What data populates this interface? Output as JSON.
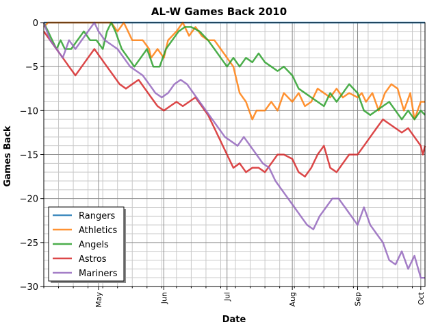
{
  "chart_data": {
    "type": "line",
    "title": "AL-W Games Back 2010",
    "xlabel": "Date",
    "ylabel": "Games Back",
    "x_ticks": [
      "May",
      "Jun",
      "Jul",
      "Aug",
      "Sep",
      "Oct"
    ],
    "x_tick_dates": [
      "2010-05-01",
      "2010-06-01",
      "2010-07-01",
      "2010-08-01",
      "2010-09-01",
      "2010-10-01"
    ],
    "xlim": [
      "2010-04-05",
      "2010-10-03"
    ],
    "ylim": [
      -30,
      0
    ],
    "y_ticks": [
      0,
      -5,
      -10,
      -15,
      -20,
      -25,
      -30
    ],
    "grid": true,
    "legend_position": "lower-left",
    "series": [
      {
        "name": "Rangers",
        "color": "#1f77b4",
        "points": [
          [
            "2010-04-05",
            0
          ],
          [
            "2010-06-01",
            0
          ],
          [
            "2010-10-03",
            0
          ]
        ]
      },
      {
        "name": "Athletics",
        "color": "#ff7f0e",
        "points": [
          [
            "2010-04-05",
            -0.5
          ],
          [
            "2010-04-07",
            0
          ],
          [
            "2010-04-28",
            0
          ],
          [
            "2010-05-03",
            0
          ],
          [
            "2010-05-07",
            0
          ],
          [
            "2010-05-10",
            -1
          ],
          [
            "2010-05-13",
            0
          ],
          [
            "2010-05-15",
            -1
          ],
          [
            "2010-05-17",
            -2
          ],
          [
            "2010-05-22",
            -2
          ],
          [
            "2010-05-25",
            -3
          ],
          [
            "2010-05-26",
            -4
          ],
          [
            "2010-05-29",
            -3
          ],
          [
            "2010-06-01",
            -4
          ],
          [
            "2010-06-03",
            -2
          ],
          [
            "2010-06-07",
            -1
          ],
          [
            "2010-06-10",
            0
          ],
          [
            "2010-06-13",
            -1.5
          ],
          [
            "2010-06-16",
            -0.5
          ],
          [
            "2010-06-19",
            -1.5
          ],
          [
            "2010-06-22",
            -2
          ],
          [
            "2010-06-25",
            -2
          ],
          [
            "2010-06-28",
            -3
          ],
          [
            "2010-07-01",
            -4
          ],
          [
            "2010-07-04",
            -5
          ],
          [
            "2010-07-07",
            -8
          ],
          [
            "2010-07-10",
            -9
          ],
          [
            "2010-07-13",
            -11
          ],
          [
            "2010-07-15",
            -10
          ],
          [
            "2010-07-19",
            -10
          ],
          [
            "2010-07-22",
            -9
          ],
          [
            "2010-07-25",
            -10
          ],
          [
            "2010-07-28",
            -8
          ],
          [
            "2010-08-01",
            -9
          ],
          [
            "2010-08-04",
            -8
          ],
          [
            "2010-08-07",
            -9.5
          ],
          [
            "2010-08-10",
            -9
          ],
          [
            "2010-08-13",
            -7.5
          ],
          [
            "2010-08-16",
            -8
          ],
          [
            "2010-08-19",
            -8.5
          ],
          [
            "2010-08-22",
            -7.5
          ],
          [
            "2010-08-25",
            -8.5
          ],
          [
            "2010-08-28",
            -8
          ],
          [
            "2010-09-01",
            -8.5
          ],
          [
            "2010-09-03",
            -8
          ],
          [
            "2010-09-05",
            -9
          ],
          [
            "2010-09-08",
            -8
          ],
          [
            "2010-09-11",
            -10
          ],
          [
            "2010-09-14",
            -8
          ],
          [
            "2010-09-17",
            -7
          ],
          [
            "2010-09-20",
            -7.5
          ],
          [
            "2010-09-23",
            -10
          ],
          [
            "2010-09-26",
            -8
          ],
          [
            "2010-09-28",
            -11
          ],
          [
            "2010-10-01",
            -9
          ],
          [
            "2010-10-03",
            -9
          ]
        ]
      },
      {
        "name": "Angels",
        "color": "#2ca02c",
        "points": [
          [
            "2010-04-05",
            0
          ],
          [
            "2010-04-07",
            -1
          ],
          [
            "2010-04-09",
            -2
          ],
          [
            "2010-04-11",
            -3
          ],
          [
            "2010-04-13",
            -2
          ],
          [
            "2010-04-15",
            -3
          ],
          [
            "2010-04-18",
            -3
          ],
          [
            "2010-04-21",
            -2
          ],
          [
            "2010-04-24",
            -1
          ],
          [
            "2010-04-27",
            -2
          ],
          [
            "2010-04-30",
            -2
          ],
          [
            "2010-05-03",
            -3
          ],
          [
            "2010-05-05",
            -1
          ],
          [
            "2010-05-07",
            0
          ],
          [
            "2010-05-09",
            -1
          ],
          [
            "2010-05-12",
            -3
          ],
          [
            "2010-05-15",
            -4
          ],
          [
            "2010-05-18",
            -5
          ],
          [
            "2010-05-21",
            -4
          ],
          [
            "2010-05-24",
            -3
          ],
          [
            "2010-05-27",
            -5
          ],
          [
            "2010-05-30",
            -5
          ],
          [
            "2010-06-02",
            -3
          ],
          [
            "2010-06-05",
            -2
          ],
          [
            "2010-06-08",
            -1
          ],
          [
            "2010-06-11",
            -0.5
          ],
          [
            "2010-06-14",
            -0.5
          ],
          [
            "2010-06-18",
            -1
          ],
          [
            "2010-06-22",
            -2
          ],
          [
            "2010-06-25",
            -3
          ],
          [
            "2010-06-28",
            -4
          ],
          [
            "2010-07-01",
            -5
          ],
          [
            "2010-07-04",
            -4
          ],
          [
            "2010-07-07",
            -5
          ],
          [
            "2010-07-10",
            -4
          ],
          [
            "2010-07-13",
            -4.5
          ],
          [
            "2010-07-16",
            -3.5
          ],
          [
            "2010-07-19",
            -4.5
          ],
          [
            "2010-07-22",
            -5
          ],
          [
            "2010-07-25",
            -5.5
          ],
          [
            "2010-07-28",
            -5
          ],
          [
            "2010-08-01",
            -6
          ],
          [
            "2010-08-04",
            -7.5
          ],
          [
            "2010-08-07",
            -8
          ],
          [
            "2010-08-10",
            -8.5
          ],
          [
            "2010-08-13",
            -9
          ],
          [
            "2010-08-16",
            -9.5
          ],
          [
            "2010-08-19",
            -8
          ],
          [
            "2010-08-22",
            -9
          ],
          [
            "2010-08-25",
            -8
          ],
          [
            "2010-08-28",
            -7
          ],
          [
            "2010-09-01",
            -8
          ],
          [
            "2010-09-04",
            -10
          ],
          [
            "2010-09-07",
            -10.5
          ],
          [
            "2010-09-10",
            -10
          ],
          [
            "2010-09-13",
            -9.5
          ],
          [
            "2010-09-16",
            -9
          ],
          [
            "2010-09-19",
            -10
          ],
          [
            "2010-09-22",
            -11
          ],
          [
            "2010-09-25",
            -10
          ],
          [
            "2010-09-28",
            -11
          ],
          [
            "2010-10-01",
            -10
          ],
          [
            "2010-10-03",
            -10.5
          ]
        ]
      },
      {
        "name": "Astros",
        "color": "#d62728",
        "points": [
          [
            "2010-04-05",
            -1
          ],
          [
            "2010-04-08",
            -2
          ],
          [
            "2010-04-11",
            -3
          ],
          [
            "2010-04-14",
            -4
          ],
          [
            "2010-04-17",
            -5
          ],
          [
            "2010-04-20",
            -6
          ],
          [
            "2010-04-23",
            -5
          ],
          [
            "2010-04-26",
            -4
          ],
          [
            "2010-04-29",
            -3
          ],
          [
            "2010-05-02",
            -4
          ],
          [
            "2010-05-05",
            -5
          ],
          [
            "2010-05-08",
            -6
          ],
          [
            "2010-05-11",
            -7
          ],
          [
            "2010-05-14",
            -7.5
          ],
          [
            "2010-05-17",
            -7
          ],
          [
            "2010-05-20",
            -6.5
          ],
          [
            "2010-05-23",
            -7.5
          ],
          [
            "2010-05-26",
            -8.5
          ],
          [
            "2010-05-29",
            -9.5
          ],
          [
            "2010-06-01",
            -10
          ],
          [
            "2010-06-04",
            -9.5
          ],
          [
            "2010-06-07",
            -9
          ],
          [
            "2010-06-10",
            -9.5
          ],
          [
            "2010-06-13",
            -9
          ],
          [
            "2010-06-16",
            -8.5
          ],
          [
            "2010-06-19",
            -9.5
          ],
          [
            "2010-06-22",
            -10.5
          ],
          [
            "2010-06-25",
            -12
          ],
          [
            "2010-06-28",
            -13.5
          ],
          [
            "2010-07-01",
            -15
          ],
          [
            "2010-07-04",
            -16.5
          ],
          [
            "2010-07-07",
            -16
          ],
          [
            "2010-07-10",
            -17
          ],
          [
            "2010-07-13",
            -16.5
          ],
          [
            "2010-07-16",
            -16.5
          ],
          [
            "2010-07-19",
            -17
          ],
          [
            "2010-07-22",
            -16
          ],
          [
            "2010-07-25",
            -15
          ],
          [
            "2010-07-28",
            -15
          ],
          [
            "2010-08-01",
            -15.5
          ],
          [
            "2010-08-04",
            -17
          ],
          [
            "2010-08-07",
            -17.5
          ],
          [
            "2010-08-10",
            -16.5
          ],
          [
            "2010-08-13",
            -15
          ],
          [
            "2010-08-16",
            -14
          ],
          [
            "2010-08-19",
            -16.5
          ],
          [
            "2010-08-22",
            -17
          ],
          [
            "2010-08-25",
            -16
          ],
          [
            "2010-08-28",
            -15
          ],
          [
            "2010-09-01",
            -15
          ],
          [
            "2010-09-04",
            -14
          ],
          [
            "2010-09-07",
            -13
          ],
          [
            "2010-09-10",
            -12
          ],
          [
            "2010-09-13",
            -11
          ],
          [
            "2010-09-16",
            -11.5
          ],
          [
            "2010-09-19",
            -12
          ],
          [
            "2010-09-22",
            -12.5
          ],
          [
            "2010-09-25",
            -12
          ],
          [
            "2010-09-28",
            -13
          ],
          [
            "2010-10-01",
            -14
          ],
          [
            "2010-10-02",
            -15
          ],
          [
            "2010-10-03",
            -14
          ]
        ]
      },
      {
        "name": "Mariners",
        "color": "#9467bd",
        "points": [
          [
            "2010-04-05",
            0
          ],
          [
            "2010-04-08",
            -2
          ],
          [
            "2010-04-11",
            -3
          ],
          [
            "2010-04-14",
            -4
          ],
          [
            "2010-04-17",
            -2
          ],
          [
            "2010-04-20",
            -3
          ],
          [
            "2010-04-23",
            -2
          ],
          [
            "2010-04-26",
            -1
          ],
          [
            "2010-04-29",
            0
          ],
          [
            "2010-05-01",
            -1
          ],
          [
            "2010-05-04",
            -2
          ],
          [
            "2010-05-07",
            -2.5
          ],
          [
            "2010-05-10",
            -3
          ],
          [
            "2010-05-13",
            -4
          ],
          [
            "2010-05-16",
            -5
          ],
          [
            "2010-05-19",
            -5.5
          ],
          [
            "2010-05-22",
            -6
          ],
          [
            "2010-05-25",
            -7
          ],
          [
            "2010-05-28",
            -8
          ],
          [
            "2010-05-31",
            -8.5
          ],
          [
            "2010-06-03",
            -8
          ],
          [
            "2010-06-06",
            -7
          ],
          [
            "2010-06-09",
            -6.5
          ],
          [
            "2010-06-12",
            -7
          ],
          [
            "2010-06-15",
            -8
          ],
          [
            "2010-06-18",
            -9
          ],
          [
            "2010-06-21",
            -10
          ],
          [
            "2010-06-24",
            -11
          ],
          [
            "2010-06-27",
            -12
          ],
          [
            "2010-06-30",
            -13
          ],
          [
            "2010-07-03",
            -13.5
          ],
          [
            "2010-07-06",
            -14
          ],
          [
            "2010-07-09",
            -13
          ],
          [
            "2010-07-12",
            -14
          ],
          [
            "2010-07-15",
            -15
          ],
          [
            "2010-07-18",
            -16
          ],
          [
            "2010-07-21",
            -16.5
          ],
          [
            "2010-07-24",
            -18
          ],
          [
            "2010-07-27",
            -19
          ],
          [
            "2010-07-30",
            -20
          ],
          [
            "2010-08-02",
            -21
          ],
          [
            "2010-08-05",
            -22
          ],
          [
            "2010-08-08",
            -23
          ],
          [
            "2010-08-11",
            -23.5
          ],
          [
            "2010-08-14",
            -22
          ],
          [
            "2010-08-17",
            -21
          ],
          [
            "2010-08-20",
            -20
          ],
          [
            "2010-08-23",
            -20
          ],
          [
            "2010-08-26",
            -21
          ],
          [
            "2010-08-29",
            -22
          ],
          [
            "2010-09-01",
            -23
          ],
          [
            "2010-09-04",
            -21
          ],
          [
            "2010-09-07",
            -23
          ],
          [
            "2010-09-10",
            -24
          ],
          [
            "2010-09-13",
            -25
          ],
          [
            "2010-09-16",
            -27
          ],
          [
            "2010-09-19",
            -27.5
          ],
          [
            "2010-09-22",
            -26
          ],
          [
            "2010-09-25",
            -28
          ],
          [
            "2010-09-28",
            -26.5
          ],
          [
            "2010-10-01",
            -29
          ],
          [
            "2010-10-03",
            -29
          ]
        ]
      }
    ]
  }
}
